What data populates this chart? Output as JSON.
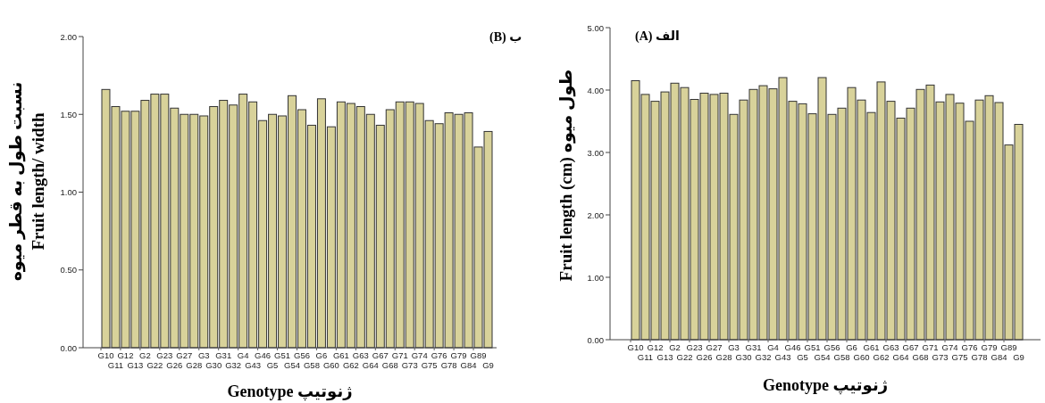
{
  "chart_data": [
    {
      "type": "bar",
      "title": "ب (B)",
      "xlabel": "Genotype    ژنوتیپ",
      "ylabel": "نسبت طول به قطر میوه\nFruit length/ width",
      "color": "#d8d29a",
      "categories": [
        "G10",
        "G11",
        "G12",
        "G13",
        "G2",
        "G22",
        "G23",
        "G26",
        "G27",
        "G28",
        "G3",
        "G30",
        "G31",
        "G32",
        "G4",
        "G43",
        "G46",
        "G5",
        "G51",
        "G54",
        "G56",
        "G58",
        "G6",
        "G60",
        "G61",
        "G62",
        "G63",
        "G64",
        "G67",
        "G68",
        "G71",
        "G73",
        "G74",
        "G75",
        "G76",
        "G78",
        "G79",
        "G84",
        "G89",
        "G9"
      ],
      "values": [
        1.66,
        1.55,
        1.52,
        1.52,
        1.59,
        1.63,
        1.63,
        1.54,
        1.5,
        1.5,
        1.49,
        1.55,
        1.59,
        1.56,
        1.63,
        1.58,
        1.46,
        1.5,
        1.49,
        1.62,
        1.53,
        1.43,
        1.6,
        1.42,
        1.58,
        1.57,
        1.55,
        1.5,
        1.43,
        1.53,
        1.58,
        1.58,
        1.57,
        1.46,
        1.44,
        1.51,
        1.5,
        1.51,
        1.29,
        1.39
      ],
      "ylim": [
        0,
        2
      ],
      "yticks": [
        {
          "value": 0,
          "label": "0.00"
        },
        {
          "value": 0.5,
          "label": "0.50"
        },
        {
          "value": 1,
          "label": "1.00"
        },
        {
          "value": 1.5,
          "label": "1.50"
        },
        {
          "value": 2,
          "label": "2.00"
        }
      ]
    },
    {
      "type": "bar",
      "title": "الف (A)",
      "xlabel": "Genotype     ژنوتیپ",
      "ylabel": "Fruit length (cm)    طول میوه",
      "color": "#d8d29a",
      "categories": [
        "G10",
        "G11",
        "G12",
        "G13",
        "G2",
        "G22",
        "G23",
        "G26",
        "G27",
        "G28",
        "G3",
        "G30",
        "G31",
        "G32",
        "G4",
        "G43",
        "G46",
        "G5",
        "G51",
        "G54",
        "G56",
        "G58",
        "G6",
        "G60",
        "G61",
        "G62",
        "G63",
        "G64",
        "G67",
        "G68",
        "G71",
        "G73",
        "G74",
        "G75",
        "G76",
        "G78",
        "G79",
        "G84",
        "G89",
        "G9"
      ],
      "values": [
        4.15,
        3.93,
        3.82,
        3.97,
        4.11,
        4.04,
        3.85,
        3.95,
        3.93,
        3.95,
        3.61,
        3.84,
        4.01,
        4.07,
        4.02,
        4.2,
        3.82,
        3.78,
        3.62,
        4.2,
        3.61,
        3.71,
        4.04,
        3.84,
        3.64,
        4.13,
        3.82,
        3.55,
        3.71,
        4.01,
        4.08,
        3.81,
        3.93,
        3.79,
        3.5,
        3.84,
        3.91,
        3.8,
        3.12,
        3.45
      ],
      "ylim": [
        0,
        5
      ],
      "yticks": [
        {
          "value": 0,
          "label": "0.00"
        },
        {
          "value": 1,
          "label": "1.00"
        },
        {
          "value": 2,
          "label": "2.00"
        },
        {
          "value": 3,
          "label": "3.00"
        },
        {
          "value": 4,
          "label": "4.00"
        },
        {
          "value": 5,
          "label": "5.00"
        }
      ]
    }
  ]
}
